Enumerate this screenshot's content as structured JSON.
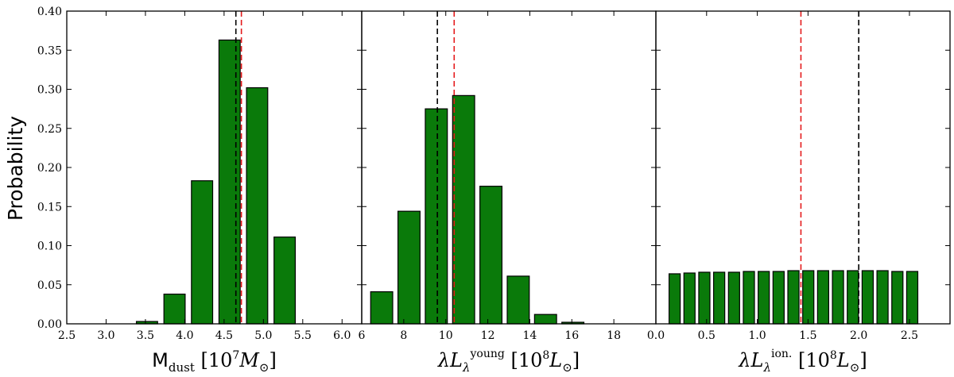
{
  "figure": {
    "ylabel": "Probability"
  },
  "chart_data": [
    {
      "type": "bar",
      "xlabel": {
        "main": "M",
        "sub": "dust",
        "units_pre": "[10",
        "units_sup": "7",
        "units_post": "M",
        "units_sub": "⊙",
        "close": "]"
      },
      "ylabel": "Probability",
      "xlim": [
        2.5,
        6.25
      ],
      "ylim": [
        0,
        0.4
      ],
      "xticks": [
        2.5,
        3.0,
        3.5,
        4.0,
        4.5,
        5.0,
        5.5,
        6.0
      ],
      "xtick_labels": [
        "2.5",
        "3.0",
        "3.5",
        "4.0",
        "4.5",
        "5.0",
        "5.5",
        "6.0"
      ],
      "yticks": [
        0.0,
        0.05,
        0.1,
        0.15,
        0.2,
        0.25,
        0.3,
        0.35,
        0.4
      ],
      "ytick_labels": [
        "0.00",
        "0.05",
        "0.10",
        "0.15",
        "0.20",
        "0.25",
        "0.30",
        "0.35",
        "0.40"
      ],
      "bar_width": 0.27,
      "bars": [
        {
          "x": 3.52,
          "value": 0.003
        },
        {
          "x": 3.87,
          "value": 0.038
        },
        {
          "x": 4.22,
          "value": 0.183
        },
        {
          "x": 4.57,
          "value": 0.363
        },
        {
          "x": 4.92,
          "value": 0.302
        },
        {
          "x": 5.27,
          "value": 0.111
        }
      ],
      "vlines": [
        {
          "x": 4.65,
          "color": "#000000"
        },
        {
          "x": 4.72,
          "color": "#e41a1c"
        }
      ]
    },
    {
      "type": "bar",
      "xlabel": {
        "main": "λL",
        "sub": "λ",
        "sup": "young",
        "units_pre": "[10",
        "units_sup": "8",
        "units_post": "L",
        "units_sub": "⊙",
        "close": "]"
      },
      "xlim": [
        6,
        20
      ],
      "ylim": [
        0,
        0.4
      ],
      "xticks": [
        6,
        8,
        10,
        12,
        14,
        16,
        18
      ],
      "xtick_labels": [
        "6",
        "8",
        "10",
        "12",
        "14",
        "16",
        "18"
      ],
      "bar_width": 1.05,
      "bars": [
        {
          "x": 6.95,
          "value": 0.041
        },
        {
          "x": 8.25,
          "value": 0.144
        },
        {
          "x": 9.55,
          "value": 0.275
        },
        {
          "x": 10.85,
          "value": 0.292
        },
        {
          "x": 12.15,
          "value": 0.176
        },
        {
          "x": 13.45,
          "value": 0.061
        },
        {
          "x": 14.75,
          "value": 0.012
        },
        {
          "x": 16.05,
          "value": 0.002
        }
      ],
      "vlines": [
        {
          "x": 9.6,
          "color": "#000000"
        },
        {
          "x": 10.4,
          "color": "#e41a1c"
        }
      ]
    },
    {
      "type": "bar",
      "xlabel": {
        "main": "λL",
        "sub": "λ",
        "sup": "ion.",
        "units_pre": "[10",
        "units_sup": "8",
        "units_post": "L",
        "units_sub": "⊙",
        "close": "]"
      },
      "xlim": [
        0,
        2.9
      ],
      "ylim": [
        0,
        0.4
      ],
      "xticks": [
        0.0,
        0.5,
        1.0,
        1.5,
        2.0,
        2.5
      ],
      "xtick_labels": [
        "0.0",
        "0.5",
        "1.0",
        "1.5",
        "2.0",
        "2.5"
      ],
      "bar_width": 0.11,
      "bars": [
        {
          "x": 0.185,
          "value": 0.064
        },
        {
          "x": 0.3314,
          "value": 0.065
        },
        {
          "x": 0.4778,
          "value": 0.066
        },
        {
          "x": 0.6242,
          "value": 0.066
        },
        {
          "x": 0.7706,
          "value": 0.066
        },
        {
          "x": 0.917,
          "value": 0.067
        },
        {
          "x": 1.0634,
          "value": 0.067
        },
        {
          "x": 1.2098,
          "value": 0.067
        },
        {
          "x": 1.3562,
          "value": 0.068
        },
        {
          "x": 1.5026,
          "value": 0.068
        },
        {
          "x": 1.649,
          "value": 0.068
        },
        {
          "x": 1.7954,
          "value": 0.068
        },
        {
          "x": 1.9418,
          "value": 0.068
        },
        {
          "x": 2.0882,
          "value": 0.068
        },
        {
          "x": 2.2346,
          "value": 0.068
        },
        {
          "x": 2.381,
          "value": 0.067
        },
        {
          "x": 2.5274,
          "value": 0.067
        }
      ],
      "vlines": [
        {
          "x": 1.43,
          "color": "#e41a1c"
        },
        {
          "x": 2.0,
          "color": "#000000"
        }
      ]
    }
  ],
  "colors": {
    "bar_fill": "#0a7a0a",
    "bar_edge": "#000000",
    "median_line": "#000000",
    "best_fit_line": "#e41a1c"
  }
}
